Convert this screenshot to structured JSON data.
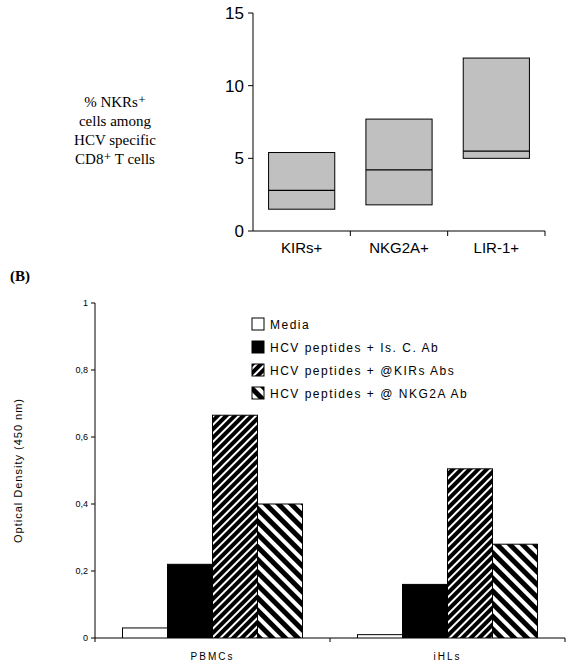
{
  "chart_data": [
    {
      "type": "range",
      "ylabel": [
        "% NKRs⁺",
        "cells among",
        "HCV specific",
        "CD8⁺ T cells"
      ],
      "categories": [
        "KIRs+",
        "NKG2A+",
        "LIR-1+"
      ],
      "min": [
        1.5,
        1.8,
        5.0
      ],
      "median": [
        2.8,
        4.2,
        5.5
      ],
      "max": [
        5.4,
        7.7,
        11.9
      ],
      "color": "#c0c0c0",
      "ylim": [
        0,
        15
      ],
      "yticks": [
        0,
        5,
        10,
        15
      ],
      "grid": false
    },
    {
      "type": "bar",
      "title": "(B)",
      "ylabel": "Optical Density (450 nm)",
      "categories": [
        "PBMCs",
        "iHLs"
      ],
      "series": [
        {
          "name": "Media",
          "color": "#ffffff",
          "values": [
            0.03,
            0.01
          ]
        },
        {
          "name": "HCV peptides + Is. C. Ab",
          "color": "#000000",
          "values": [
            0.22,
            0.16
          ]
        },
        {
          "name": "HCV peptides + @KIRs Abs",
          "color": "#000000",
          "values": [
            0.665,
            0.505
          ]
        },
        {
          "name": "HCV peptides + @ NKG2A Ab",
          "color": "#000000",
          "values": [
            0.4,
            0.28
          ]
        }
      ],
      "ylim": [
        0,
        1
      ],
      "yticks": [
        0,
        {
          "value": 0.2,
          "label": "0,2"
        },
        {
          "value": 0.4,
          "label": "0,4"
        },
        {
          "value": 0.6,
          "label": "0,6"
        },
        {
          "value": 0.8,
          "label": "0,8"
        },
        1
      ],
      "legend": "top",
      "grid": false
    }
  ]
}
